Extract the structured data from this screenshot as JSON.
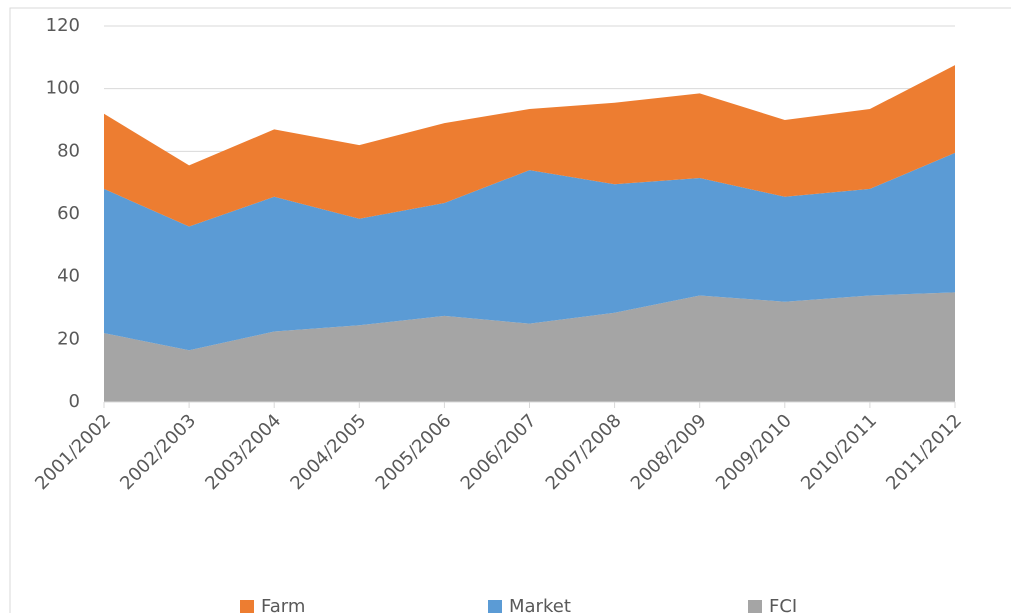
{
  "chart_data": {
    "type": "stacked_area",
    "categories": [
      "2001/2002",
      "2002/2003",
      "2003/2004",
      "2004/2005",
      "2005/2006",
      "2006/2007",
      "2007/2008",
      "2008/2009",
      "2009/2010",
      "2010/2011",
      "2011/2012"
    ],
    "series": [
      {
        "name": "Farm",
        "color": "#ed7d31",
        "values": [
          24,
          19.5,
          21.5,
          23.5,
          25.5,
          19.5,
          26,
          27,
          24.5,
          25.5,
          28
        ]
      },
      {
        "name": "Market",
        "color": "#5b9bd5",
        "values": [
          46,
          39.5,
          43,
          34,
          36,
          49,
          41,
          37.5,
          33.5,
          34,
          44.5
        ]
      },
      {
        "name": "FCI",
        "color": "#a5a5a5",
        "values": [
          22,
          16.5,
          22.5,
          24.5,
          27.5,
          25,
          28.5,
          34,
          32,
          34,
          35
        ]
      }
    ],
    "ylim": [
      0,
      120
    ],
    "yticks": [
      0,
      20,
      40,
      60,
      80,
      100,
      120
    ],
    "grid": true,
    "legend": "bottom"
  }
}
